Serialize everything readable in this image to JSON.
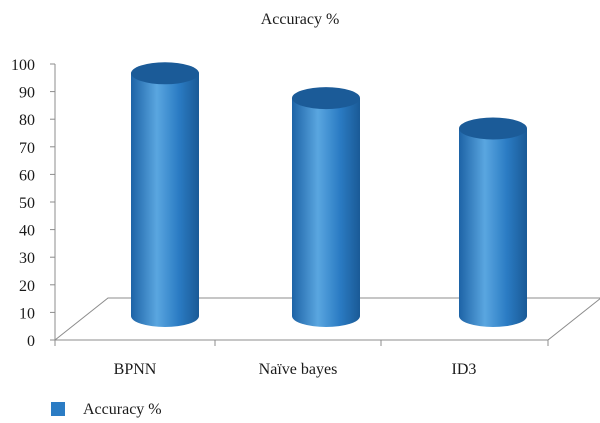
{
  "chart_data": {
    "type": "bar",
    "style": "3d-cylinder",
    "title": "Accuracy %",
    "categories": [
      "BPNN",
      "Naïve bayes",
      "ID3"
    ],
    "series": [
      {
        "name": "Accuracy %",
        "values": [
          97,
          88,
          77
        ]
      }
    ],
    "ylim": [
      0,
      100
    ],
    "yticks": [
      "0",
      "10",
      "20",
      "30",
      "40",
      "50",
      "60",
      "70",
      "80",
      "90",
      "100"
    ],
    "xlabel": "",
    "ylabel": "",
    "grid": false,
    "legend": "bottom-left",
    "colors": {
      "bar": "#2b7cc4",
      "bar_dark": "#1a5f9e",
      "bar_light": "#5aa6e0",
      "top": "#1b5b98",
      "axis": "#8c8c8c"
    }
  }
}
